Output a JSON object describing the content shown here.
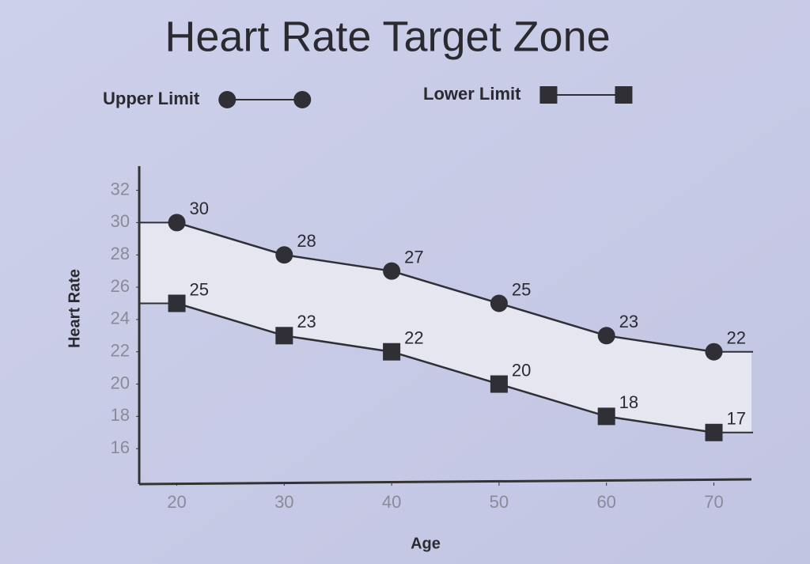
{
  "chart_data": {
    "type": "line",
    "title": "Heart Rate Target Zone",
    "x_label": "Age",
    "y_label": "Heart Rate",
    "x": [
      20,
      30,
      40,
      50,
      60,
      70
    ],
    "series": [
      {
        "name": "Upper Limit",
        "color": "#2f2f35",
        "marker": "circle",
        "values": [
          30,
          28,
          27,
          25,
          23,
          22
        ]
      },
      {
        "name": "Lower Limit",
        "color": "#2f2f35",
        "marker": "square",
        "values": [
          25,
          23,
          22,
          20,
          18,
          17
        ]
      }
    ],
    "xlim": [
      16.5,
      73.5
    ],
    "xticks": [
      20,
      30,
      40,
      50,
      60,
      70
    ],
    "ylim": [
      14,
      33.5
    ],
    "yticks": [
      16,
      18,
      20,
      22,
      24,
      26,
      28,
      30,
      32
    ],
    "grid": false,
    "band_fill": "#e6e6f0"
  }
}
